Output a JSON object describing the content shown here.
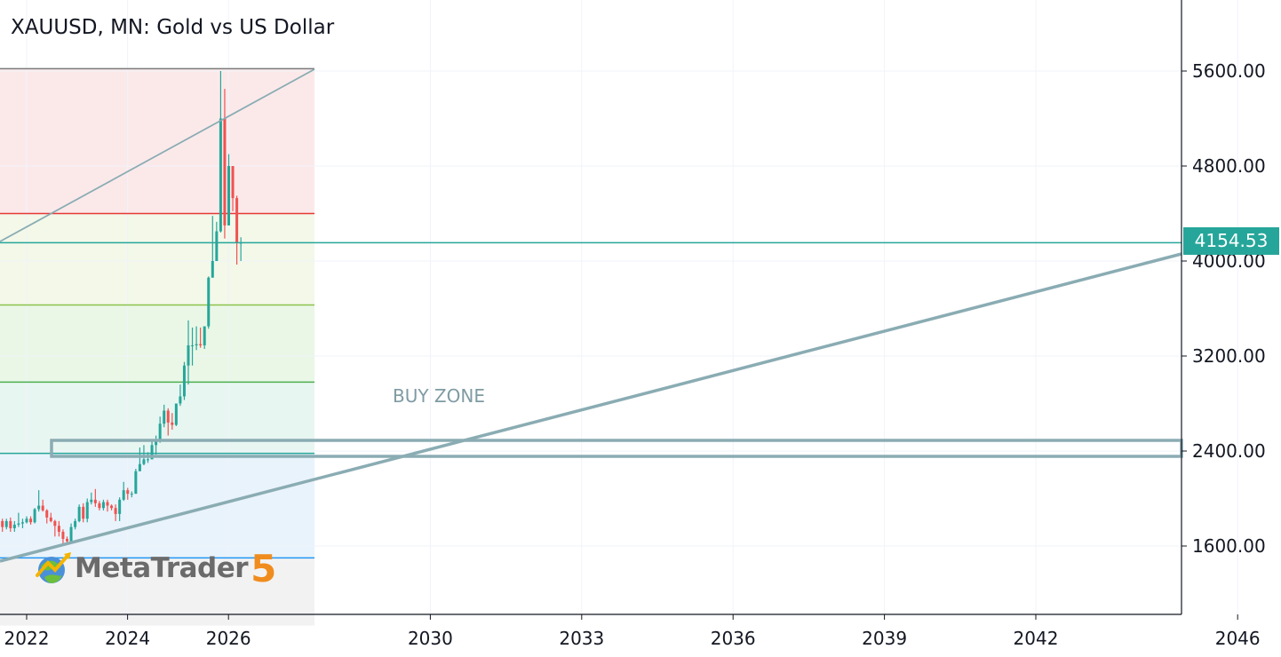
{
  "title": "XAUUSD, MN: Gold vs US Dollar",
  "logo": {
    "text": "MetaTrader",
    "number": "5"
  },
  "colors": {
    "up": "#26a69a",
    "down": "#ef5350",
    "grid": "#f0f3fa",
    "axis": "#131722",
    "trendline": "#8aacb3",
    "current_price": "#26a69a",
    "fib_red": "#e53935",
    "fib_green": "#8bc34a",
    "fib_dark_green": "#4caf50",
    "fib_blue": "#2196f3"
  },
  "current_price_label": "4154.53",
  "annotations": [
    {
      "text": "BUY  ZONE"
    }
  ],
  "chart_data": {
    "type": "candlestick",
    "title": "XAUUSD, MN: Gold vs US Dollar",
    "timeframe": "MN",
    "y_ticks": [
      "1600.00",
      "2400.00",
      "3200.00",
      "4000.00",
      "4800.00",
      "5600.00"
    ],
    "y_tick_values": [
      1600,
      2400,
      3200,
      4000,
      4800,
      5600
    ],
    "x_ticks": [
      "2022",
      "2024",
      "2026",
      "2030",
      "2033",
      "2036",
      "2039",
      "2042",
      "2046"
    ],
    "current_price": 4154.53,
    "candles_start": "2021-07",
    "candles": [
      [
        1810,
        1830,
        1720,
        1760
      ],
      [
        1760,
        1830,
        1740,
        1810
      ],
      [
        1810,
        1840,
        1720,
        1750
      ],
      [
        1750,
        1810,
        1720,
        1780
      ],
      [
        1780,
        1880,
        1760,
        1790
      ],
      [
        1790,
        1830,
        1750,
        1800
      ],
      [
        1800,
        1850,
        1790,
        1830
      ],
      [
        1830,
        1850,
        1780,
        1800
      ],
      [
        1800,
        1920,
        1790,
        1910
      ],
      [
        1910,
        2070,
        1890,
        1940
      ],
      [
        1940,
        1990,
        1890,
        1900
      ],
      [
        1900,
        1910,
        1790,
        1840
      ],
      [
        1840,
        1880,
        1800,
        1810
      ],
      [
        1810,
        1820,
        1680,
        1770
      ],
      [
        1770,
        1810,
        1680,
        1720
      ],
      [
        1720,
        1740,
        1620,
        1660
      ],
      [
        1660,
        1680,
        1620,
        1640
      ],
      [
        1640,
        1790,
        1620,
        1760
      ],
      [
        1760,
        1830,
        1740,
        1810
      ],
      [
        1810,
        1950,
        1800,
        1930
      ],
      [
        1930,
        1960,
        1800,
        1830
      ],
      [
        1830,
        2000,
        1800,
        1970
      ],
      [
        1970,
        2050,
        1950,
        1990
      ],
      [
        1990,
        2080,
        1930,
        1960
      ],
      [
        1960,
        1980,
        1900,
        1920
      ],
      [
        1920,
        1990,
        1900,
        1970
      ],
      [
        1970,
        1990,
        1890,
        1940
      ],
      [
        1940,
        1950,
        1900,
        1920
      ],
      [
        1920,
        1950,
        1810,
        1870
      ],
      [
        1870,
        2010,
        1810,
        1990
      ],
      [
        1990,
        2140,
        1980,
        2070
      ],
      [
        2070,
        2090,
        1990,
        2040
      ],
      [
        2040,
        2060,
        2010,
        2040
      ],
      [
        2040,
        2250,
        2040,
        2230
      ],
      [
        2230,
        2430,
        2230,
        2290
      ],
      [
        2290,
        2450,
        2280,
        2330
      ],
      [
        2330,
        2390,
        2300,
        2330
      ],
      [
        2330,
        2480,
        2330,
        2450
      ],
      [
        2450,
        2530,
        2370,
        2500
      ],
      [
        2500,
        2690,
        2470,
        2630
      ],
      [
        2630,
        2790,
        2600,
        2740
      ],
      [
        2740,
        2760,
        2530,
        2640
      ],
      [
        2640,
        2720,
        2580,
        2620
      ],
      [
        2620,
        2800,
        2610,
        2800
      ],
      [
        2800,
        2960,
        2780,
        2860
      ],
      [
        2860,
        3150,
        2830,
        3120
      ],
      [
        3120,
        3500,
        2960,
        3290
      ],
      [
        3290,
        3440,
        3120,
        3290
      ],
      [
        3290,
        3450,
        3250,
        3300
      ],
      [
        3300,
        3440,
        3270,
        3290
      ],
      [
        3290,
        3450,
        3260,
        3450
      ],
      [
        3450,
        3870,
        3430,
        3860
      ],
      [
        3860,
        4380,
        3860,
        4000
      ],
      [
        4000,
        4330,
        4000,
        4250
      ],
      [
        4250,
        5600,
        4240,
        5200
      ],
      [
        5200,
        5450,
        4190,
        4300
      ],
      [
        4300,
        4900,
        4300,
        4800
      ],
      [
        4800,
        4800,
        4420,
        4530
      ],
      [
        4530,
        4550,
        3970,
        4150
      ],
      [
        4150,
        4200,
        4000,
        4154.53
      ]
    ]
  }
}
